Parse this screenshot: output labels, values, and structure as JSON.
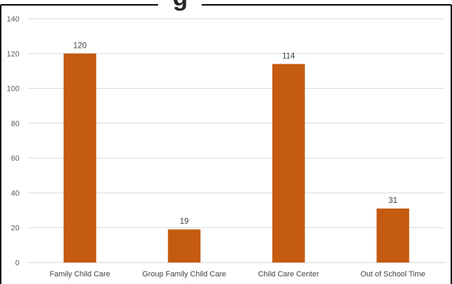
{
  "chart_data": {
    "type": "bar",
    "title_fragment": "g",
    "categories": [
      "Family Child Care",
      "Group Family Child Care",
      "Child Care Center",
      "Out of School Time"
    ],
    "values": [
      120,
      19,
      114,
      31
    ],
    "data_labels": [
      "120",
      "19",
      "114",
      "31"
    ],
    "ylim": [
      0,
      140
    ],
    "yticks": [
      0,
      20,
      40,
      60,
      80,
      100,
      120,
      140
    ],
    "ytick_labels": [
      "0",
      "20",
      "40",
      "60",
      "80",
      "100",
      "120",
      "140"
    ],
    "grid": true,
    "legend": "none",
    "xlabel": "",
    "ylabel": "",
    "colors": {
      "bar": "#C55A11",
      "grid": "#D9D9D9",
      "frame": "#000000"
    }
  }
}
